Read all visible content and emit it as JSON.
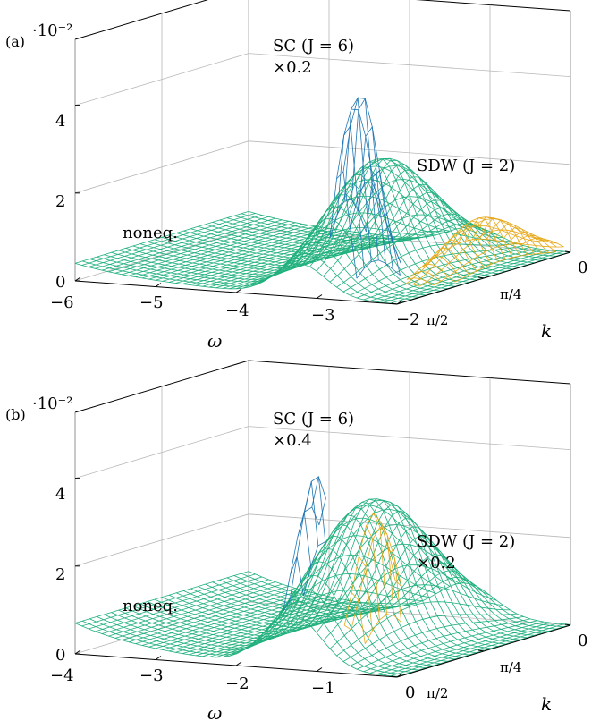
{
  "chart_data": [
    {
      "type": "surface3d",
      "panel_label": "(a)",
      "z_exponent_label": "·10⁻²",
      "xlabel": "ω",
      "ylabel": "k",
      "xlim": [
        -6,
        -2
      ],
      "ylim_radians": [
        0,
        1.5708
      ],
      "zlim": [
        0,
        0.055
      ],
      "x_ticks": [
        -6,
        -5,
        -4,
        -3,
        -2
      ],
      "x_tick_labels": [
        "−6",
        "−5",
        "−4",
        "−3",
        "−2"
      ],
      "y_tick_labels": [
        "0",
        "π/4",
        "π/2"
      ],
      "z_tick_labels": [
        "0",
        "2",
        "4"
      ],
      "z_ticks": [
        0,
        0.02,
        0.04
      ],
      "grid": true,
      "series": [
        {
          "name": "noneq.",
          "color": "#20b07d",
          "peak_omega": -3.2,
          "peak_k_fraction": 0.55,
          "peak_height": 0.026,
          "width_omega": 0.45,
          "width_k": 0.4,
          "background": 0.004
        },
        {
          "name": "SC (J = 6)",
          "scale_note": "×0.2",
          "color": "#1f77b4",
          "peak_omega": -2.7,
          "peak_k_fraction": 0.9,
          "peak_height": 0.048,
          "width_omega": 0.15,
          "width_k": 0.15
        },
        {
          "name": "SDW (J = 2)",
          "color": "#e7a91b",
          "peak_omega": -2.3,
          "peak_k_fraction": 0.38,
          "peak_height": 0.012,
          "width_omega": 0.25,
          "width_k": 0.3
        }
      ]
    },
    {
      "type": "surface3d",
      "panel_label": "(b)",
      "z_exponent_label": "·10⁻²",
      "xlabel": "ω",
      "ylabel": "k",
      "xlim": [
        -4,
        0
      ],
      "ylim_radians": [
        0,
        1.5708
      ],
      "zlim": [
        0,
        0.055
      ],
      "x_ticks": [
        -4,
        -3,
        -2,
        -1,
        0
      ],
      "x_tick_labels": [
        "−4",
        "−3",
        "−2",
        "−1",
        "0"
      ],
      "y_tick_labels": [
        "0",
        "π/4",
        "π/2"
      ],
      "z_tick_labels": [
        "0",
        "2",
        "4"
      ],
      "z_ticks": [
        0,
        0.02,
        0.04
      ],
      "grid": true,
      "series": [
        {
          "name": "noneq.",
          "color": "#20b07d",
          "peak_omega": -1.3,
          "peak_k_fraction": 0.55,
          "peak_height": 0.033,
          "width_omega": 0.5,
          "width_k": 0.45,
          "background": 0.007
        },
        {
          "name": "SC (J = 6)",
          "scale_note": "×0.4",
          "color": "#1f77b4",
          "peak_omega": -1.35,
          "peak_k_fraction": 0.85,
          "peak_height": 0.043,
          "width_omega": 0.15,
          "width_k": 0.15
        },
        {
          "name": "SDW (J = 2)",
          "scale_note": "×0.2",
          "color": "#e7a91b",
          "peak_omega": -0.8,
          "peak_k_fraction": 0.75,
          "peak_height": 0.036,
          "width_omega": 0.12,
          "width_k": 0.15
        }
      ]
    }
  ]
}
